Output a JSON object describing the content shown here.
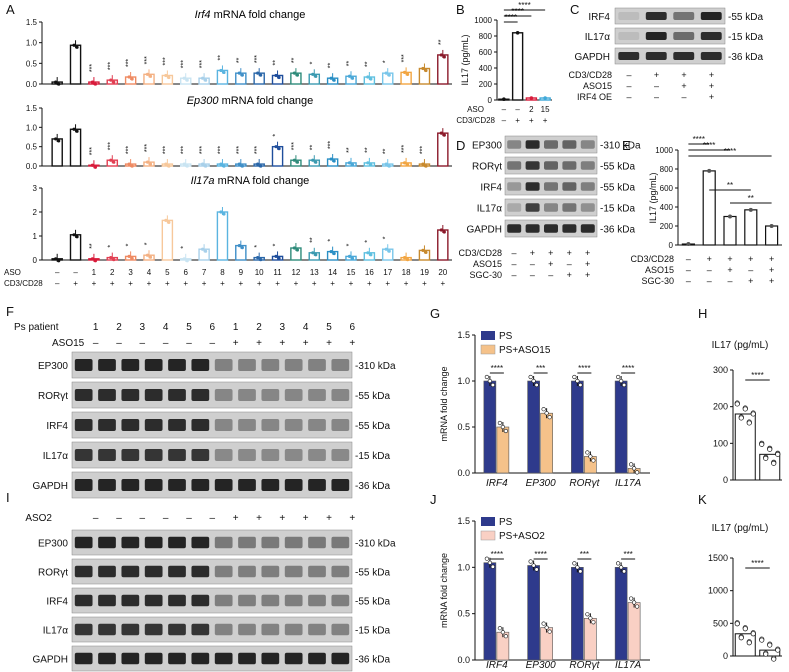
{
  "panel_labels": {
    "A": "A",
    "B": "B",
    "C": "C",
    "D": "D",
    "E": "E",
    "F": "F",
    "G": "G",
    "H": "H",
    "I": "I",
    "J": "J",
    "K": "K"
  },
  "colors": {
    "ps": "#2e3a8c",
    "ps_aso15": "#f5c28a",
    "ps_aso2": "#f9d0c4",
    "bar_edge": "#111111",
    "band": "#1a1a1a",
    "blot_bg": "#cfcfcf"
  },
  "panelA": {
    "aso_label": "ASO",
    "cd_label": "CD3/CD28",
    "aso_row": [
      "–",
      "–",
      "1",
      "2",
      "3",
      "4",
      "5",
      "6",
      "7",
      "8",
      "9",
      "10",
      "11",
      "12",
      "13",
      "14",
      "15",
      "16",
      "17",
      "18",
      "19",
      "20"
    ],
    "cd_row": [
      "–",
      "+",
      "+",
      "+",
      "+",
      "+",
      "+",
      "+",
      "+",
      "+",
      "+",
      "+",
      "+",
      "+",
      "+",
      "+",
      "+",
      "+",
      "+",
      "+",
      "+",
      "+"
    ],
    "bar_colors": [
      "#111111",
      "#111111",
      "#d81b3a",
      "#e23f52",
      "#ef8a62",
      "#f4b183",
      "#f7c89b",
      "#c9e4f2",
      "#a8d0ea",
      "#5ab4e0",
      "#3f8fc8",
      "#2966a8",
      "#1f4e9c",
      "#2e8b7a",
      "#3b9ab0",
      "#2a8fc5",
      "#4aa8d8",
      "#5fc0e0",
      "#79c6ea",
      "#f2a541",
      "#c88a2e",
      "#8b1a2a"
    ]
  },
  "chart_data": [
    {
      "id": "A1",
      "type": "bar",
      "title": "Irf4 mRNA fold change",
      "title_italic": "Irf4",
      "title_rest": " mRNA fold change",
      "ylim": [
        0,
        1.6
      ],
      "yticks": [
        "0.0",
        "0.5",
        "1.0",
        "1.5"
      ],
      "values": [
        0.05,
        1.0,
        0.05,
        0.1,
        0.18,
        0.25,
        0.22,
        0.15,
        0.15,
        0.35,
        0.28,
        0.28,
        0.22,
        0.28,
        0.25,
        0.15,
        0.2,
        0.18,
        0.28,
        0.3,
        0.4,
        0.75
      ],
      "sig": [
        "",
        "",
        "***",
        "***",
        "***",
        "***",
        "***",
        "***",
        "***",
        "**",
        "**",
        "***",
        "**",
        "**",
        "*",
        "**",
        "**",
        "**",
        "*",
        "***",
        "",
        "**"
      ]
    },
    {
      "id": "A2",
      "type": "bar",
      "title": "Ep300 mRNA fold change",
      "title_italic": "Ep300",
      "title_rest": " mRNA fold change",
      "ylim": [
        0,
        1.5
      ],
      "yticks": [
        "0.0",
        "0.5",
        "1.0",
        "1.5"
      ],
      "values": [
        0.7,
        0.95,
        0.02,
        0.15,
        0.05,
        0.1,
        0.05,
        0.05,
        0.05,
        0.05,
        0.05,
        0.05,
        0.5,
        0.15,
        0.15,
        0.18,
        0.08,
        0.08,
        0.05,
        0.08,
        0.05,
        0.85
      ],
      "sig": [
        "",
        "",
        "***",
        "***",
        "***",
        "***",
        "***",
        "***",
        "***",
        "***",
        "***",
        "***",
        "*",
        "***",
        "**",
        "***",
        "**",
        "**",
        "**",
        "***",
        "***",
        ""
      ]
    },
    {
      "id": "A3",
      "type": "bar",
      "title": "Il17a mRNA fold change",
      "title_italic": "Il17a",
      "title_rest": " mRNA fold change",
      "ylim": [
        0,
        3
      ],
      "yticks": [
        "0",
        "1",
        "2",
        "3"
      ],
      "values": [
        0.05,
        1.05,
        0.05,
        0.1,
        0.15,
        0.2,
        1.65,
        0.05,
        0.45,
        2.0,
        0.6,
        0.1,
        0.15,
        0.5,
        0.3,
        0.35,
        0.15,
        0.3,
        0.45,
        0.1,
        0.4,
        1.25
      ],
      "sig": [
        "",
        "",
        "**",
        "*",
        "*",
        "*",
        "",
        "*",
        "",
        "",
        "",
        "*",
        "*",
        "",
        "**",
        "*",
        "*",
        "*",
        "*",
        "",
        "",
        ""
      ]
    },
    {
      "id": "B",
      "type": "bar",
      "ylabel": "IL17 (pg/mL)",
      "ylim": [
        0,
        1000
      ],
      "yticks": [
        "0",
        "200",
        "400",
        "600",
        "800",
        "1000"
      ],
      "categories": [
        "1",
        "2",
        "3",
        "4"
      ],
      "values": [
        10,
        840,
        25,
        25
      ],
      "colors": [
        "#111111",
        "#111111",
        "#d81b3a",
        "#3fa9d9"
      ],
      "aso_label": "ASO",
      "cd_label": "CD3/CD28",
      "aso_row": [
        "–",
        "–",
        "2",
        "15"
      ],
      "cd_row": [
        "–",
        "+",
        "+",
        "+"
      ],
      "sig": [
        "****",
        "****",
        "****"
      ]
    },
    {
      "id": "E",
      "type": "bar",
      "ylabel": "IL17 (pg/mL)",
      "ylim": [
        0,
        1000
      ],
      "yticks": [
        "0",
        "200",
        "400",
        "600",
        "800",
        "1000"
      ],
      "values": [
        10,
        780,
        300,
        370,
        200
      ],
      "rows": [
        {
          "label": "CD3/CD28",
          "cells": [
            "–",
            "+",
            "+",
            "+",
            "+"
          ]
        },
        {
          "label": "ASO15",
          "cells": [
            "–",
            "–",
            "+",
            "–",
            "+"
          ]
        },
        {
          "label": "SGC-30",
          "cells": [
            "–",
            "–",
            "–",
            "+",
            "+"
          ]
        }
      ],
      "sig": [
        "****",
        "****",
        "****",
        "**",
        "**"
      ]
    },
    {
      "id": "G",
      "type": "bar",
      "ylabel": "mRNA fold change",
      "ylim": [
        0,
        1.5
      ],
      "yticks": [
        "0.0",
        "0.5",
        "1.0",
        "1.5"
      ],
      "categories": [
        "IRF4",
        "EP300",
        "RORγt",
        "IL17A"
      ],
      "series": [
        {
          "name": "PS",
          "values": [
            1.0,
            1.0,
            1.0,
            1.0
          ]
        },
        {
          "name": "PS+ASO15",
          "values": [
            0.5,
            0.65,
            0.18,
            0.05
          ]
        }
      ],
      "sig": [
        "****",
        "***",
        "****",
        "****"
      ]
    },
    {
      "id": "H",
      "type": "scatter-bar",
      "title": "IL17 (pg/mL)",
      "ylim": [
        0,
        300
      ],
      "yticks": [
        "0",
        "100",
        "200",
        "300"
      ],
      "values": [
        180,
        70
      ],
      "sig": "****"
    },
    {
      "id": "J",
      "type": "bar",
      "ylabel": "mRNA fold change",
      "ylim": [
        0,
        1.5
      ],
      "yticks": [
        "0.0",
        "0.5",
        "1.0",
        "1.5"
      ],
      "categories": [
        "IRF4",
        "EP300",
        "RORγt",
        "IL17A"
      ],
      "series": [
        {
          "name": "PS",
          "values": [
            1.05,
            1.02,
            1.0,
            1.0
          ]
        },
        {
          "name": "PS+ASO2",
          "values": [
            0.3,
            0.35,
            0.45,
            0.62
          ]
        }
      ],
      "sig": [
        "****",
        "****",
        "***",
        "***"
      ]
    },
    {
      "id": "K",
      "type": "scatter-bar",
      "title": "IL17 (pg/mL)",
      "ylim": [
        0,
        1500
      ],
      "yticks": [
        "0",
        "500",
        "1000",
        "1500"
      ],
      "values": [
        340,
        90
      ],
      "sig": "****"
    }
  ],
  "blotC": {
    "rows": [
      "IRF4",
      "IL17α",
      "GAPDH"
    ],
    "kda": [
      "55 kDa",
      "15 kDa",
      "36 kDa"
    ],
    "cond": [
      {
        "label": "CD3/CD28",
        "cells": [
          "–",
          "+",
          "+",
          "+"
        ]
      },
      {
        "label": "ASO15",
        "cells": [
          "–",
          "–",
          "+",
          "+"
        ]
      },
      {
        "label": "IRF4 OE",
        "cells": [
          "–",
          "–",
          "–",
          "+"
        ]
      }
    ]
  },
  "blotD": {
    "rows": [
      "EP300",
      "RORγt",
      "IRF4",
      "IL17α",
      "GAPDH"
    ],
    "kda": [
      "310 kDa",
      "55 kDa",
      "55 kDa",
      "15 kDa",
      "36 kDa"
    ],
    "cond": [
      {
        "label": "CD3/CD28",
        "cells": [
          "–",
          "+",
          "+",
          "+",
          "+"
        ]
      },
      {
        "label": "ASO15",
        "cells": [
          "–",
          "–",
          "+",
          "–",
          "+"
        ]
      },
      {
        "label": "SGC-30",
        "cells": [
          "–",
          "–",
          "–",
          "+",
          "+"
        ]
      }
    ]
  },
  "blotF": {
    "header1": "Ps patient",
    "header2": "ASO15",
    "patients": [
      "1",
      "2",
      "3",
      "4",
      "5",
      "6",
      "1",
      "2",
      "3",
      "4",
      "5",
      "6"
    ],
    "aso": [
      "–",
      "–",
      "–",
      "–",
      "–",
      "–",
      "+",
      "+",
      "+",
      "+",
      "+",
      "+"
    ],
    "rows": [
      "EP300",
      "RORγt",
      "IRF4",
      "IL17α",
      "GAPDH"
    ],
    "kda": [
      "310 kDa",
      "55 kDa",
      "55 kDa",
      "15 kDa",
      "36 kDa"
    ]
  },
  "blotI": {
    "header": "ASO2",
    "aso": [
      "–",
      "–",
      "–",
      "–",
      "–",
      "–",
      "+",
      "+",
      "+",
      "+",
      "+",
      "+"
    ],
    "rows": [
      "EP300",
      "RORγt",
      "IRF4",
      "IL17α",
      "GAPDH"
    ],
    "kda": [
      "310 kDa",
      "55 kDa",
      "55 kDa",
      "15 kDa",
      "36 kDa"
    ]
  }
}
